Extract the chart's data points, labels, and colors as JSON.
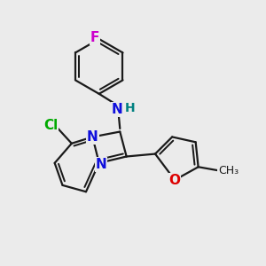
{
  "background_color": "#ebebeb",
  "bond_color": "#1a1a1a",
  "bond_lw": 1.6,
  "figsize": [
    3.0,
    3.0
  ],
  "dpi": 100,
  "colors": {
    "F": "#cc00cc",
    "Cl": "#00aa00",
    "N": "#1010dd",
    "H_nh": "#008080",
    "O": "#dd0000",
    "C": "#1a1a1a"
  }
}
